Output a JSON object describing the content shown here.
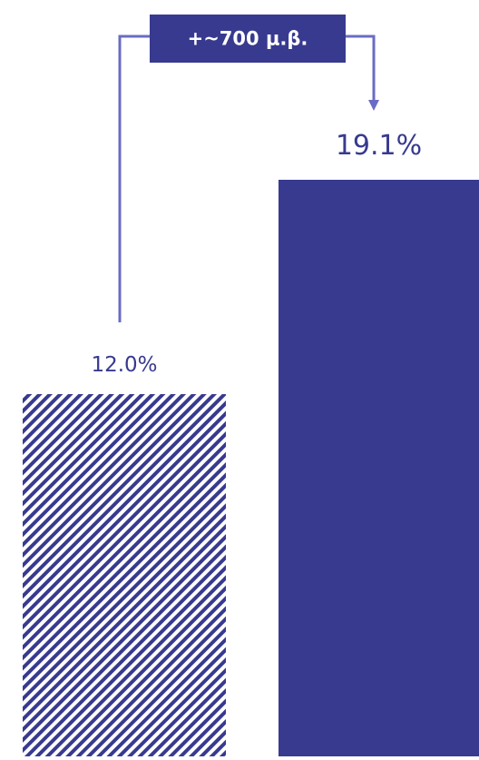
{
  "chart_data": {
    "type": "bar",
    "categories": [
      "",
      ""
    ],
    "values": [
      12.0,
      19.1
    ],
    "value_labels": [
      "12.0%",
      "19.1%"
    ],
    "bar_styles": [
      "hatched",
      "solid"
    ],
    "annotation": {
      "text": "+~700 μ.β.",
      "from_index": 0,
      "to_index": 1
    },
    "title": "",
    "xlabel": "",
    "ylabel": "",
    "ylim": [
      0,
      19.1
    ],
    "grid": false,
    "legend": "none"
  },
  "colors": {
    "bar": "#383a8f",
    "connector": "#6a6cc4",
    "hatch_background": "#ffffff"
  }
}
